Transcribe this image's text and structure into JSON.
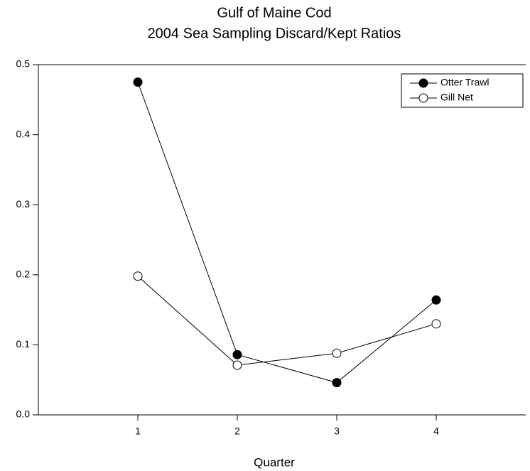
{
  "chart_data": {
    "type": "line",
    "title": "Gulf of Maine Cod",
    "subtitle": "2004 Sea Sampling Discard/Kept Ratios",
    "x_label": "Quarter",
    "x": [
      1,
      2,
      3,
      4
    ],
    "series": [
      {
        "name": "Otter Trawl",
        "color": "#000000",
        "marker": "filled",
        "values": [
          0.475,
          0.086,
          0.046,
          0.164
        ]
      },
      {
        "name": "Gill Net",
        "color": "#000000",
        "marker": "open",
        "values": [
          0.198,
          0.071,
          0.088,
          0.13
        ]
      }
    ],
    "xlim": [
      0,
      4.9
    ],
    "xticks": [
      1,
      2,
      3,
      4
    ],
    "ylim": [
      0,
      0.5
    ],
    "yticks": [
      {
        "value": 0,
        "label": "0.0"
      },
      0.1,
      0.2,
      0.3,
      0.4,
      0.5
    ],
    "legend": "upper right",
    "grid": false
  }
}
